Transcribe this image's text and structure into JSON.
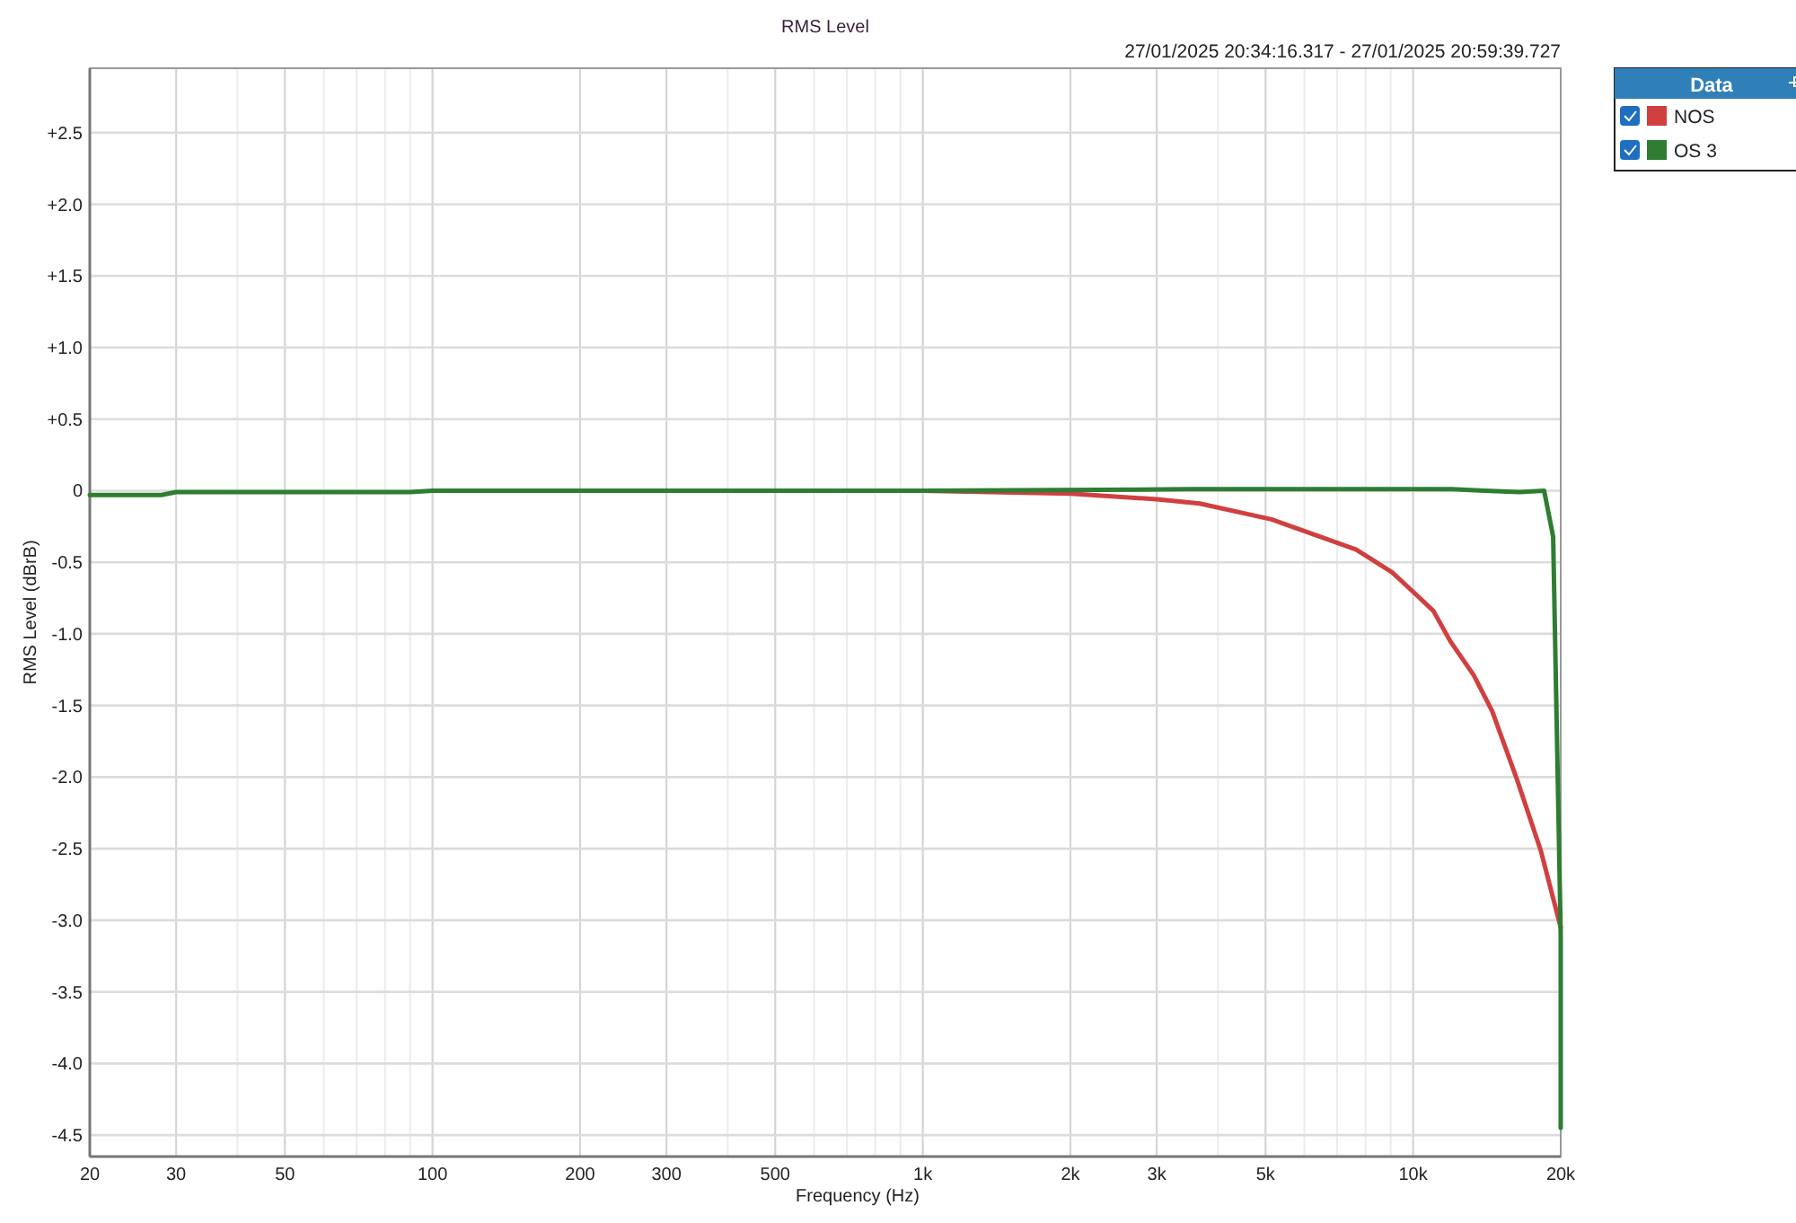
{
  "chart_data": {
    "type": "line",
    "title": "RMS Level",
    "subtitle": "27/01/2025 20:34:16.317 - 27/01/2025 20:59:39.727",
    "xlabel": "Frequency (Hz)",
    "ylabel": "RMS Level (dBrB)",
    "legend_title": "Data",
    "legend": "top right",
    "grid": true,
    "log": "x",
    "xlim": [
      20,
      20000
    ],
    "xticks": [
      20,
      30,
      50,
      100,
      200,
      300,
      500,
      {
        "value": 1000,
        "label": "1k"
      },
      {
        "value": 2000,
        "label": "2k"
      },
      {
        "value": 3000,
        "label": "3k"
      },
      {
        "value": 5000,
        "label": "5k"
      },
      {
        "value": 10000,
        "label": "10k"
      },
      {
        "value": 20000,
        "label": "20k"
      }
    ],
    "ylim": [
      -4.65,
      2.95
    ],
    "yticks": [
      {
        "value": 2.5,
        "label": "+2.5"
      },
      {
        "value": 2,
        "label": "+2.0"
      },
      {
        "value": 1.5,
        "label": "+1.5"
      },
      {
        "value": 1,
        "label": "+1.0"
      },
      {
        "value": 0.5,
        "label": "+0.5"
      },
      0,
      -0.5,
      {
        "value": -1,
        "label": "-1.0"
      },
      -1.5,
      {
        "value": -2,
        "label": "-2.0"
      },
      -2.5,
      {
        "value": -3,
        "label": "-3.0"
      },
      -3.5,
      {
        "value": -4,
        "label": "-4.0"
      },
      -4.5
    ],
    "series": [
      {
        "name": "NOS",
        "color": "#d04040",
        "x": [
          100,
          1000,
          2000,
          3000,
          3670,
          5140,
          7640,
          9060,
          10100,
          11000,
          11900,
          13300,
          14500,
          16300,
          18200,
          20000
        ],
        "values": [
          0,
          0,
          -0.02,
          -0.06,
          -0.09,
          -0.2,
          -0.41,
          -0.57,
          -0.72,
          -0.84,
          -1.05,
          -1.29,
          -1.54,
          -2.02,
          -2.51,
          -3.05
        ]
      },
      {
        "name": "OS 3",
        "color": "#2e7d32",
        "x": [
          20,
          28,
          30,
          90,
          100,
          1000,
          3500,
          12000,
          14000,
          16500,
          18500,
          19300,
          20000,
          20000
        ],
        "values": [
          -0.03,
          -0.03,
          -0.01,
          -0.01,
          0,
          0,
          0.01,
          0.01,
          0,
          -0.01,
          0,
          -0.32,
          -3.1,
          -4.45
        ]
      }
    ]
  }
}
